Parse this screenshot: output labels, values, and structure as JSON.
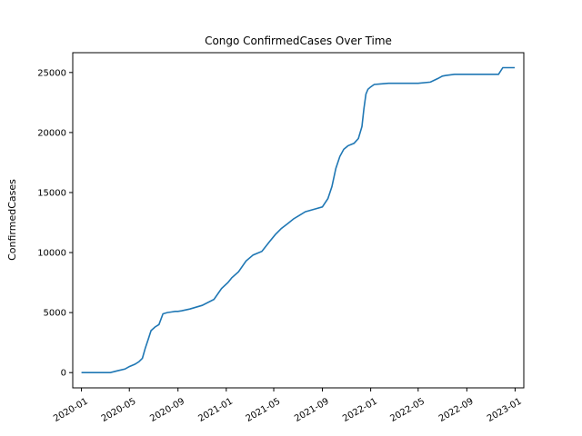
{
  "chart_data": {
    "type": "line",
    "title": "Congo  ConfirmedCases Over Time",
    "xlabel": "",
    "ylabel": "ConfirmedCases",
    "x_ticks": [
      "2020-01",
      "2020-05",
      "2020-09",
      "2021-01",
      "2021-05",
      "2021-09",
      "2022-01",
      "2022-05",
      "2022-09",
      "2023-01"
    ],
    "y_ticks": [
      0,
      5000,
      10000,
      15000,
      20000,
      25000
    ],
    "xlim": [
      "2019-12-10",
      "2023-01-23"
    ],
    "ylim": [
      -1270,
      26650
    ],
    "grid": false,
    "legend": "none",
    "color": "#1f77b4",
    "series": [
      {
        "x": [
          "2020-01-01",
          "2020-03-14",
          "2020-04-01",
          "2020-04-20",
          "2020-05-01",
          "2020-05-15",
          "2020-05-25",
          "2020-06-03",
          "2020-06-10",
          "2020-06-18",
          "2020-06-25",
          "2020-07-05",
          "2020-07-15",
          "2020-07-25",
          "2020-08-05",
          "2020-08-15",
          "2020-08-25",
          "2020-09-01",
          "2020-09-10",
          "2020-10-01",
          "2020-11-01",
          "2020-12-01",
          "2020-12-20",
          "2021-01-05",
          "2021-01-15",
          "2021-02-01",
          "2021-02-20",
          "2021-03-10",
          "2021-04-01",
          "2021-04-20",
          "2021-05-05",
          "2021-05-20",
          "2021-06-05",
          "2021-06-20",
          "2021-07-05",
          "2021-07-20",
          "2021-08-10",
          "2021-09-01",
          "2021-09-15",
          "2021-09-25",
          "2021-10-05",
          "2021-10-15",
          "2021-10-25",
          "2021-11-05",
          "2021-11-20",
          "2021-12-01",
          "2021-12-10",
          "2021-12-15",
          "2021-12-20",
          "2021-12-25",
          "2022-01-01",
          "2022-01-10",
          "2022-01-25",
          "2022-02-15",
          "2022-03-15",
          "2022-05-01",
          "2022-06-01",
          "2022-06-20",
          "2022-07-01",
          "2022-07-10",
          "2022-08-01",
          "2022-11-20",
          "2022-12-01",
          "2022-12-31"
        ],
        "y": [
          0,
          0,
          150,
          300,
          500,
          700,
          900,
          1200,
          2000,
          2800,
          3500,
          3800,
          4000,
          4900,
          5000,
          5050,
          5100,
          5100,
          5150,
          5300,
          5600,
          6100,
          7000,
          7500,
          7900,
          8400,
          9300,
          9800,
          10100,
          10900,
          11500,
          12000,
          12400,
          12800,
          13100,
          13400,
          13600,
          13800,
          14500,
          15500,
          17000,
          18000,
          18600,
          18900,
          19100,
          19500,
          20500,
          22000,
          23200,
          23600,
          23800,
          24000,
          24050,
          24100,
          24100,
          24100,
          24200,
          24500,
          24700,
          24750,
          24850,
          24850,
          25400,
          25400
        ]
      }
    ]
  }
}
